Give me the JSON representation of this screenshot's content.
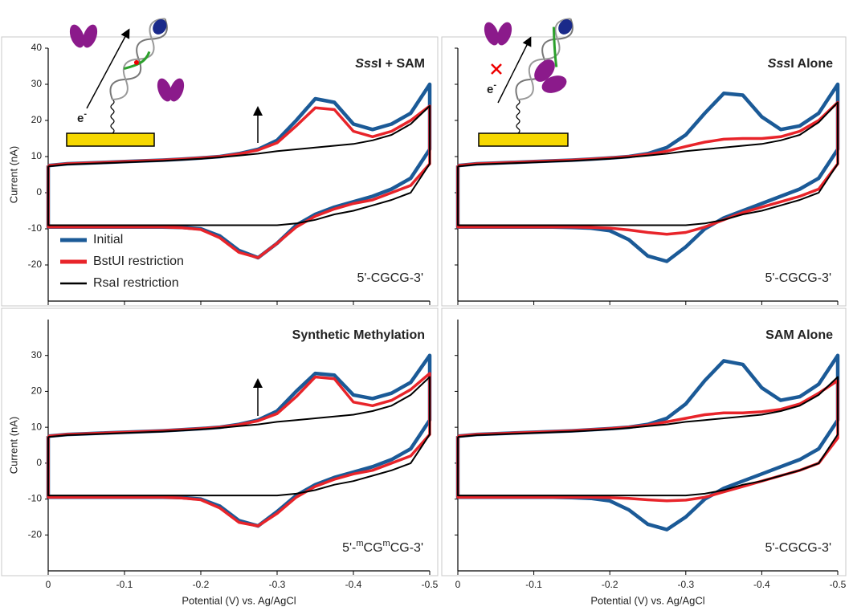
{
  "chart_data": [
    {
      "type": "line",
      "title": [
        {
          "text": "Sss",
          "style": "italic"
        },
        {
          "text": "I + SAM"
        }
      ],
      "sequence": [
        {
          "text": "5'-CGCG-3'"
        }
      ],
      "inset_label": [
        {
          "text": "e"
        },
        {
          "text": "-",
          "style": "super"
        }
      ],
      "ylabel": "Current (nA)",
      "xlim": [
        0,
        -0.5
      ],
      "xticks": [
        0,
        -0.1,
        -0.2,
        -0.3,
        -0.4,
        -0.5
      ],
      "show_xtick_labels": false,
      "ylim": [
        -30,
        40
      ],
      "yticks": [
        -20,
        -10,
        0,
        10,
        20,
        30,
        40
      ],
      "show_ytick_labels": true,
      "legend": "lower left",
      "x": [
        0,
        -0.025,
        -0.05,
        -0.075,
        -0.1,
        -0.125,
        -0.15,
        -0.175,
        -0.2,
        -0.225,
        -0.25,
        -0.275,
        -0.3,
        -0.325,
        -0.35,
        -0.375,
        -0.4,
        -0.425,
        -0.45,
        -0.475,
        -0.5,
        -0.5,
        -0.475,
        -0.45,
        -0.425,
        -0.4,
        -0.375,
        -0.35,
        -0.325,
        -0.3,
        -0.275,
        -0.25,
        -0.225,
        -0.2,
        -0.175,
        -0.15,
        -0.125,
        -0.1,
        -0.075,
        -0.05,
        -0.025,
        0,
        0
      ],
      "series": [
        {
          "name": "Initial",
          "color": "#1b5a97",
          "values": [
            7.5,
            8,
            8.2,
            8.4,
            8.6,
            8.8,
            9,
            9.3,
            9.6,
            10,
            10.8,
            12,
            14.5,
            20,
            26,
            25,
            19,
            17.5,
            19,
            22,
            30,
            12,
            4,
            1,
            -1,
            -2.5,
            -4,
            -6,
            -9,
            -14,
            -18,
            -16,
            -12,
            -10,
            -9.6,
            -9.5,
            -9.5,
            -9.5,
            -9.5,
            -9.5,
            -9.5,
            -9.5,
            7.5
          ]
        },
        {
          "name": "BstUI restriction",
          "color": "#e8242a",
          "values": [
            7.5,
            8,
            8.2,
            8.4,
            8.6,
            8.8,
            9,
            9.3,
            9.6,
            10,
            10.7,
            11.8,
            13.8,
            18.5,
            23.5,
            23,
            17,
            15.5,
            17,
            20,
            24,
            8,
            2,
            0,
            -2,
            -3,
            -4.5,
            -6.5,
            -9.5,
            -14,
            -18,
            -16.5,
            -12.5,
            -10.2,
            -9.7,
            -9.5,
            -9.5,
            -9.5,
            -9.5,
            -9.5,
            -9.5,
            -9.5,
            7.5
          ]
        },
        {
          "name": "RsaI restriction",
          "color": "#000000",
          "values": [
            7.3,
            7.8,
            8,
            8.2,
            8.4,
            8.6,
            8.8,
            9.1,
            9.4,
            9.8,
            10.3,
            10.8,
            11.5,
            12,
            12.5,
            13,
            13.5,
            14.5,
            16,
            19,
            24,
            8,
            0,
            -2,
            -3.5,
            -5,
            -6,
            -7.5,
            -8.5,
            -9,
            -9,
            -9,
            -9,
            -9,
            -9,
            -9,
            -9,
            -9,
            -9,
            -9,
            -9,
            -9,
            7.3
          ]
        }
      ]
    },
    {
      "type": "line",
      "title": [
        {
          "text": "Sss",
          "style": "italic"
        },
        {
          "text": "I Alone"
        }
      ],
      "sequence": [
        {
          "text": "5'-CGCG-3'"
        }
      ],
      "inset_label": [
        {
          "text": "e"
        },
        {
          "text": "-",
          "style": "super"
        }
      ],
      "xlim": [
        0,
        -0.5
      ],
      "xticks": [
        0,
        -0.1,
        -0.2,
        -0.3,
        -0.4,
        -0.5
      ],
      "show_xtick_labels": false,
      "ylim": [
        -30,
        40
      ],
      "yticks": [
        -20,
        -10,
        0,
        10,
        20,
        30,
        40
      ],
      "show_ytick_labels": false,
      "x": [
        0,
        -0.025,
        -0.05,
        -0.075,
        -0.1,
        -0.125,
        -0.15,
        -0.175,
        -0.2,
        -0.225,
        -0.25,
        -0.275,
        -0.3,
        -0.325,
        -0.35,
        -0.375,
        -0.4,
        -0.425,
        -0.45,
        -0.475,
        -0.5,
        -0.5,
        -0.475,
        -0.45,
        -0.425,
        -0.4,
        -0.375,
        -0.35,
        -0.325,
        -0.3,
        -0.275,
        -0.25,
        -0.225,
        -0.2,
        -0.175,
        -0.15,
        -0.125,
        -0.1,
        -0.075,
        -0.05,
        -0.025,
        0,
        0
      ],
      "series": [
        {
          "name": "Initial",
          "color": "#1b5a97",
          "values": [
            7.5,
            8,
            8.2,
            8.4,
            8.6,
            8.8,
            9,
            9.3,
            9.6,
            10,
            10.8,
            12.5,
            16,
            22,
            27.5,
            27,
            21,
            17.5,
            18.5,
            22,
            30,
            12,
            4,
            1,
            -1,
            -3,
            -5,
            -7,
            -10,
            -15,
            -19,
            -17.5,
            -13,
            -10.5,
            -9.8,
            -9.6,
            -9.5,
            -9.5,
            -9.5,
            -9.5,
            -9.5,
            -9.5,
            7.5
          ]
        },
        {
          "name": "BstUI restriction",
          "color": "#e8242a",
          "values": [
            7.5,
            8,
            8.2,
            8.4,
            8.6,
            8.8,
            9,
            9.3,
            9.6,
            10,
            10.6,
            11.5,
            12.8,
            14,
            14.8,
            15,
            15,
            15.5,
            17,
            20,
            25,
            8,
            1,
            -1,
            -2.5,
            -4,
            -5.5,
            -7.5,
            -9.5,
            -11,
            -11.5,
            -11,
            -10.3,
            -9.8,
            -9.6,
            -9.5,
            -9.5,
            -9.5,
            -9.5,
            -9.5,
            -9.5,
            -9.5,
            7.5
          ]
        },
        {
          "name": "RsaI restriction",
          "color": "#000000",
          "values": [
            7.3,
            7.8,
            8,
            8.2,
            8.4,
            8.6,
            8.8,
            9.1,
            9.4,
            9.8,
            10.3,
            10.8,
            11.5,
            12,
            12.5,
            13,
            13.5,
            14.5,
            16,
            19.5,
            25,
            8,
            0,
            -2,
            -3.5,
            -5,
            -6,
            -7.5,
            -8.5,
            -9,
            -9,
            -9,
            -9,
            -9,
            -9,
            -9,
            -9,
            -9,
            -9,
            -9,
            -9,
            -9,
            7.3
          ]
        }
      ]
    },
    {
      "type": "line",
      "title": [
        {
          "text": "Synthetic Methylation"
        }
      ],
      "sequence": [
        {
          "text": "5'-"
        },
        {
          "text": "m",
          "style": "super"
        },
        {
          "text": "CG"
        },
        {
          "text": "m",
          "style": "super"
        },
        {
          "text": "CG-3'"
        }
      ],
      "ylabel": "Current (nA)",
      "xlabel": "Potential (V) vs. Ag/AgCl",
      "xlim": [
        0,
        -0.5
      ],
      "xticks": [
        0,
        -0.1,
        -0.2,
        -0.3,
        -0.4,
        -0.5
      ],
      "show_xtick_labels": true,
      "ylim": [
        -30,
        40
      ],
      "yticks": [
        -20,
        -10,
        0,
        10,
        20,
        30
      ],
      "show_ytick_labels": true,
      "x": [
        0,
        -0.025,
        -0.05,
        -0.075,
        -0.1,
        -0.125,
        -0.15,
        -0.175,
        -0.2,
        -0.225,
        -0.25,
        -0.275,
        -0.3,
        -0.325,
        -0.35,
        -0.375,
        -0.4,
        -0.425,
        -0.45,
        -0.475,
        -0.5,
        -0.5,
        -0.475,
        -0.45,
        -0.425,
        -0.4,
        -0.375,
        -0.35,
        -0.325,
        -0.3,
        -0.275,
        -0.25,
        -0.225,
        -0.2,
        -0.175,
        -0.15,
        -0.125,
        -0.1,
        -0.075,
        -0.05,
        -0.025,
        0,
        0
      ],
      "series": [
        {
          "name": "Initial",
          "color": "#1b5a97",
          "values": [
            7.5,
            8,
            8.2,
            8.4,
            8.6,
            8.8,
            9,
            9.3,
            9.6,
            10,
            10.8,
            12,
            14.5,
            20,
            25,
            24.5,
            19,
            18,
            19.5,
            22.5,
            30,
            12,
            4,
            1,
            -1,
            -2.5,
            -4,
            -6,
            -9,
            -13.5,
            -17.5,
            -16,
            -12,
            -10,
            -9.6,
            -9.5,
            -9.5,
            -9.5,
            -9.5,
            -9.5,
            -9.5,
            -9.5,
            7.5
          ]
        },
        {
          "name": "BstUI restriction",
          "color": "#e8242a",
          "values": [
            7.5,
            8,
            8.2,
            8.4,
            8.6,
            8.8,
            9,
            9.3,
            9.6,
            10,
            10.7,
            11.8,
            13.8,
            18.5,
            24,
            23.5,
            17,
            16,
            17.5,
            20.5,
            25,
            8,
            2,
            0,
            -2,
            -3,
            -4.5,
            -6.5,
            -9.5,
            -14,
            -17.5,
            -16.5,
            -12.5,
            -10.2,
            -9.7,
            -9.5,
            -9.5,
            -9.5,
            -9.5,
            -9.5,
            -9.5,
            -9.5,
            7.5
          ]
        },
        {
          "name": "RsaI restriction",
          "color": "#000000",
          "values": [
            7.3,
            7.8,
            8,
            8.2,
            8.4,
            8.6,
            8.8,
            9.1,
            9.4,
            9.8,
            10.3,
            10.8,
            11.5,
            12,
            12.5,
            13,
            13.5,
            14.5,
            16,
            19,
            24,
            8,
            0,
            -2,
            -3.5,
            -5,
            -6,
            -7.5,
            -8.5,
            -9,
            -9,
            -9,
            -9,
            -9,
            -9,
            -9,
            -9,
            -9,
            -9,
            -9,
            -9,
            -9,
            7.3
          ]
        }
      ]
    },
    {
      "type": "line",
      "title": [
        {
          "text": "SAM Alone"
        }
      ],
      "sequence": [
        {
          "text": "5'-CGCG-3'"
        }
      ],
      "xlabel": "Potential (V) vs. Ag/AgCl",
      "xlim": [
        0,
        -0.5
      ],
      "xticks": [
        0,
        -0.1,
        -0.2,
        -0.3,
        -0.4,
        -0.5
      ],
      "show_xtick_labels": true,
      "ylim": [
        -30,
        40
      ],
      "yticks": [
        -20,
        -10,
        0,
        10,
        20,
        30
      ],
      "show_ytick_labels": false,
      "x": [
        0,
        -0.025,
        -0.05,
        -0.075,
        -0.1,
        -0.125,
        -0.15,
        -0.175,
        -0.2,
        -0.225,
        -0.25,
        -0.275,
        -0.3,
        -0.325,
        -0.35,
        -0.375,
        -0.4,
        -0.425,
        -0.45,
        -0.475,
        -0.5,
        -0.5,
        -0.475,
        -0.45,
        -0.425,
        -0.4,
        -0.375,
        -0.35,
        -0.325,
        -0.3,
        -0.275,
        -0.25,
        -0.225,
        -0.2,
        -0.175,
        -0.15,
        -0.125,
        -0.1,
        -0.075,
        -0.05,
        -0.025,
        0,
        0
      ],
      "series": [
        {
          "name": "Initial",
          "color": "#1b5a97",
          "values": [
            7.5,
            8,
            8.2,
            8.4,
            8.6,
            8.8,
            9,
            9.3,
            9.6,
            10,
            10.8,
            12.5,
            16.5,
            23,
            28.5,
            27.5,
            21,
            17.5,
            18.5,
            22,
            30,
            12,
            4,
            1,
            -1,
            -3,
            -5,
            -7,
            -10,
            -15,
            -18.5,
            -17,
            -13,
            -10.5,
            -9.8,
            -9.6,
            -9.5,
            -9.5,
            -9.5,
            -9.5,
            -9.5,
            -9.5,
            7.5
          ]
        },
        {
          "name": "BstUI restriction",
          "color": "#e8242a",
          "values": [
            7.5,
            8,
            8.2,
            8.4,
            8.6,
            8.8,
            9,
            9.3,
            9.6,
            10,
            10.6,
            11.5,
            12.5,
            13.5,
            14,
            14,
            14.3,
            15,
            16.5,
            19.5,
            23,
            7,
            0,
            -2,
            -3.5,
            -5,
            -6.5,
            -8,
            -9.5,
            -10.3,
            -10.5,
            -10.2,
            -9.8,
            -9.6,
            -9.5,
            -9.5,
            -9.5,
            -9.5,
            -9.5,
            -9.5,
            -9.5,
            -9.5,
            7.5
          ]
        },
        {
          "name": "RsaI restriction",
          "color": "#000000",
          "values": [
            7.3,
            7.8,
            8,
            8.2,
            8.4,
            8.6,
            8.8,
            9.1,
            9.4,
            9.8,
            10.3,
            10.8,
            11.5,
            12,
            12.5,
            13,
            13.5,
            14.5,
            16,
            19,
            24,
            8,
            0,
            -2,
            -3.5,
            -5,
            -6,
            -7.5,
            -8.5,
            -9,
            -9,
            -9,
            -9,
            -9,
            -9,
            -9,
            -9,
            -9,
            -9,
            -9,
            -9,
            -9,
            7.3
          ]
        }
      ]
    }
  ]
}
